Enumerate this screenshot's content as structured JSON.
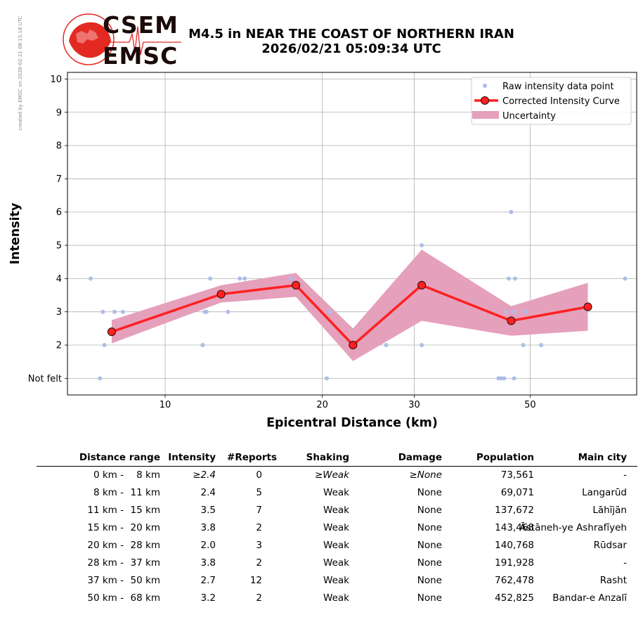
{
  "credit": "created by EMSC on 2026-02-21 08:15:18 UTC",
  "logo": {
    "top": "CSEM",
    "bottom": "EMSC"
  },
  "title": {
    "line1": "M4.5 in NEAR THE COAST OF NORTHERN IRAN",
    "line2": "2026/02/21 05:09:34 UTC"
  },
  "chart_data": {
    "type": "line",
    "xlabel": "Epicentral Distance (km)",
    "ylabel": "Intensity",
    "xscale": "log",
    "xlim": [
      6.5,
      80
    ],
    "ylim": [
      0.5,
      10.2
    ],
    "x_ticks": [
      10,
      20,
      30,
      50
    ],
    "y_ticks": [
      {
        "value": 1,
        "label": "Not felt"
      },
      {
        "value": 2,
        "label": "2"
      },
      {
        "value": 3,
        "label": "3"
      },
      {
        "value": 4,
        "label": "4"
      },
      {
        "value": 5,
        "label": "5"
      },
      {
        "value": 6,
        "label": "6"
      },
      {
        "value": 7,
        "label": "7"
      },
      {
        "value": 8,
        "label": "8"
      },
      {
        "value": 9,
        "label": "9"
      },
      {
        "value": 10,
        "label": "10"
      }
    ],
    "grid": true,
    "legend_position": "top-right",
    "series": [
      {
        "name": "Raw intensity data point",
        "style": "points",
        "color": "#aebde8",
        "points": [
          [
            7.2,
            4
          ],
          [
            7.6,
            3
          ],
          [
            7.65,
            2
          ],
          [
            7.5,
            1
          ],
          [
            8.0,
            3
          ],
          [
            8.3,
            3
          ],
          [
            11.8,
            2
          ],
          [
            11.9,
            3
          ],
          [
            12.0,
            3
          ],
          [
            12.2,
            4
          ],
          [
            13.2,
            3
          ],
          [
            13.9,
            4
          ],
          [
            14.2,
            4
          ],
          [
            17.4,
            4
          ],
          [
            20.4,
            1
          ],
          [
            20.7,
            3
          ],
          [
            26.5,
            2
          ],
          [
            31.0,
            2
          ],
          [
            31.0,
            5
          ],
          [
            43.5,
            1
          ],
          [
            44.0,
            1
          ],
          [
            44.6,
            1
          ],
          [
            45.0,
            3
          ],
          [
            45.5,
            4
          ],
          [
            46.0,
            6
          ],
          [
            46.8,
            4
          ],
          [
            46.7,
            3
          ],
          [
            46.6,
            1
          ],
          [
            48.5,
            2
          ],
          [
            49.0,
            3
          ],
          [
            52.5,
            2
          ],
          [
            76.0,
            4
          ]
        ]
      },
      {
        "name": "Corrected Intensity Curve",
        "style": "line-markers",
        "color": "#ff2020",
        "points": [
          [
            7.9,
            2.4
          ],
          [
            12.8,
            3.53
          ],
          [
            17.8,
            3.8
          ],
          [
            22.9,
            2.0
          ],
          [
            31.0,
            3.8
          ],
          [
            46.0,
            2.73
          ],
          [
            64.5,
            3.15
          ]
        ]
      },
      {
        "name": "Uncertainty",
        "style": "band",
        "color": "#e5a0bc",
        "x": [
          7.9,
          12.8,
          17.8,
          22.9,
          31.0,
          46.0,
          64.5
        ],
        "upper": [
          2.75,
          3.8,
          4.17,
          2.5,
          4.87,
          3.17,
          3.87
        ],
        "lower": [
          2.05,
          3.28,
          3.45,
          1.52,
          2.73,
          2.28,
          2.43
        ]
      }
    ]
  },
  "table": {
    "headers": [
      "Distance range",
      "Intensity",
      "#Reports",
      "Shaking",
      "Damage",
      "Population",
      "Main city"
    ],
    "rows": [
      {
        "range_from": "0 km -",
        "range_to": "8 km",
        "intensity": "≥2.4",
        "reports": "0",
        "shaking": "≥Weak",
        "damage": "≥None",
        "population": "73,561",
        "city": "-",
        "italic": true
      },
      {
        "range_from": "8 km -",
        "range_to": "11 km",
        "intensity": "2.4",
        "reports": "5",
        "shaking": "Weak",
        "damage": "None",
        "population": "69,071",
        "city": "Langarūd"
      },
      {
        "range_from": "11 km -",
        "range_to": "15 km",
        "intensity": "3.5",
        "reports": "7",
        "shaking": "Weak",
        "damage": "None",
        "population": "137,672",
        "city": "Lāhījān"
      },
      {
        "range_from": "15 km -",
        "range_to": "20 km",
        "intensity": "3.8",
        "reports": "2",
        "shaking": "Weak",
        "damage": "None",
        "population": "143,468",
        "city": "Āstāneh-ye Ashrafīyeh"
      },
      {
        "range_from": "20 km -",
        "range_to": "28 km",
        "intensity": "2.0",
        "reports": "3",
        "shaking": "Weak",
        "damage": "None",
        "population": "140,768",
        "city": "Rūdsar"
      },
      {
        "range_from": "28 km -",
        "range_to": "37 km",
        "intensity": "3.8",
        "reports": "2",
        "shaking": "Weak",
        "damage": "None",
        "population": "191,928",
        "city": "-"
      },
      {
        "range_from": "37 km -",
        "range_to": "50 km",
        "intensity": "2.7",
        "reports": "12",
        "shaking": "Weak",
        "damage": "None",
        "population": "762,478",
        "city": "Rasht"
      },
      {
        "range_from": "50 km -",
        "range_to": "68 km",
        "intensity": "3.2",
        "reports": "2",
        "shaking": "Weak",
        "damage": "None",
        "population": "452,825",
        "city": "Bandar-e Anzalī"
      }
    ]
  }
}
